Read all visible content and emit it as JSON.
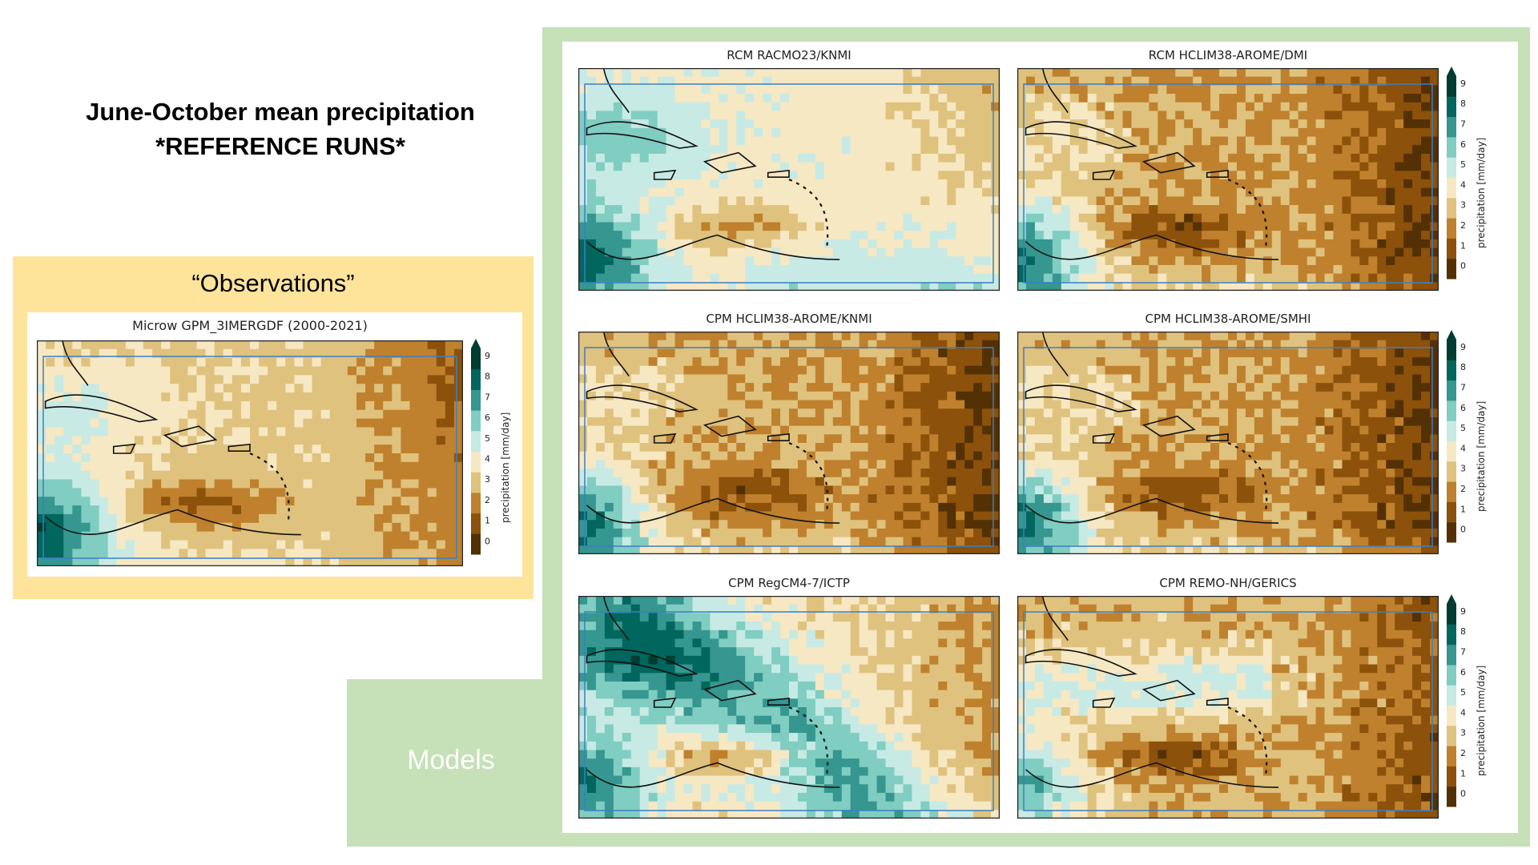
{
  "slide": {
    "title_line1": "June-October mean precipitation",
    "title_line2": "*REFERENCE RUNS*",
    "observations_label": "“Observations”",
    "models_label": "Models"
  },
  "colorbar": {
    "label": "precipitation [mm/day]",
    "ticks": [
      "0",
      "1",
      "2",
      "3",
      "4",
      "5",
      "6",
      "7",
      "8",
      "9"
    ],
    "colors": [
      "#543005",
      "#8c510a",
      "#bf812d",
      "#dfc27d",
      "#f6e8c3",
      "#c7eae5",
      "#80cdc1",
      "#35978f",
      "#01665e",
      "#003c30"
    ]
  },
  "chart_data": [
    {
      "type": "heatmap",
      "title": "Microw GPM_3IMERGDF (2000-2021)",
      "colorbar_label": "precipitation [mm/day]",
      "colorbar_range": [
        0,
        9
      ],
      "pattern": "observations"
    },
    {
      "type": "heatmap",
      "title": "RCM RACMO23/KNMI",
      "pattern": "wet"
    },
    {
      "type": "heatmap",
      "title": "RCM HCLIM38-AROME/DMI",
      "colorbar_label": "precipitation [mm/day]",
      "colorbar_range": [
        0,
        9
      ],
      "pattern": "dry"
    },
    {
      "type": "heatmap",
      "title": "CPM HCLIM38-AROME/KNMI",
      "pattern": "dry"
    },
    {
      "type": "heatmap",
      "title": "CPM HCLIM38-AROME/SMHI",
      "colorbar_label": "precipitation [mm/day]",
      "colorbar_range": [
        0,
        9
      ],
      "pattern": "dry"
    },
    {
      "type": "heatmap",
      "title": "CPM RegCM4-7/ICTP",
      "pattern": "verywet"
    },
    {
      "type": "heatmap",
      "title": "CPM REMO-NH/GERICS",
      "colorbar_label": "precipitation [mm/day]",
      "colorbar_range": [
        0,
        9
      ],
      "pattern": "mixed"
    }
  ]
}
